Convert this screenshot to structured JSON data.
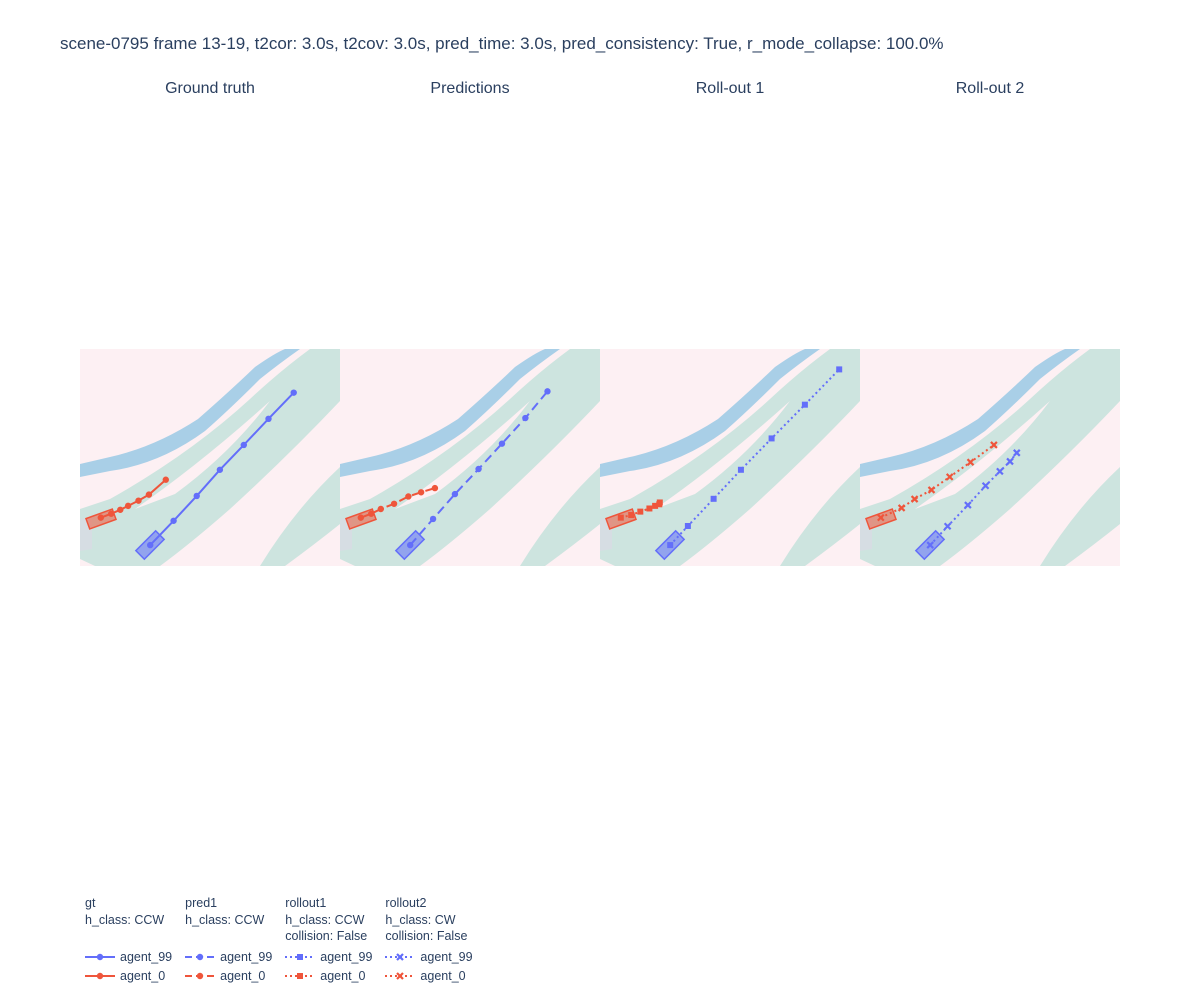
{
  "title": "scene-0795 frame 13-19, t2cor: 3.0s, t2cov: 3.0s, pred_time: 3.0s, pred_consistency: True, r_mode_collapse: 100.0%",
  "colors": {
    "agent_99": "#636efa",
    "agent_0": "#ef553b",
    "map_background": "#fdf0f3",
    "map_drivable": "#cde4df",
    "map_walkway": "#a9cfe7",
    "map_gray": "#d6dde3"
  },
  "chart_data": [
    {
      "type": "scatter",
      "panel": "gt",
      "subplot_title": "Ground truth",
      "xlim": [
        0,
        100
      ],
      "ylim": [
        0,
        83
      ],
      "grid": false,
      "series": [
        {
          "name": "agent_99",
          "legendgroup": "gt",
          "line": "solid",
          "marker": "circle",
          "x": [
            27,
            36,
            44.9,
            53.8,
            63,
            72.5,
            82.2
          ],
          "y": [
            8,
            17.3,
            26.8,
            36.8,
            46.3,
            56.3,
            66.3
          ]
        },
        {
          "name": "agent_0",
          "legendgroup": "gt",
          "line": "solid",
          "marker": "circle",
          "x": [
            8,
            12,
            15.5,
            18.5,
            22.5,
            26.5,
            33
          ],
          "y": [
            18.5,
            20,
            21.5,
            23,
            25,
            27.3,
            33
          ]
        }
      ]
    },
    {
      "type": "scatter",
      "panel": "pred1",
      "subplot_title": "Predictions",
      "xlim": [
        0,
        100
      ],
      "ylim": [
        0,
        83
      ],
      "grid": false,
      "series": [
        {
          "name": "agent_99",
          "legendgroup": "pred1",
          "line": "dash",
          "marker": "circle",
          "x": [
            27,
            35.8,
            44.2,
            53.3,
            62.3,
            71.3,
            79.8
          ],
          "y": [
            8,
            18,
            27.5,
            37.1,
            46.8,
            56.6,
            66.8
          ]
        },
        {
          "name": "agent_0",
          "legendgroup": "pred1",
          "line": "dash",
          "marker": "circle",
          "x": [
            8,
            12,
            15.7,
            20.8,
            26.3,
            31.2,
            36.5
          ],
          "y": [
            18.5,
            20,
            21.8,
            23.8,
            26.6,
            28.2,
            29.8
          ]
        }
      ]
    },
    {
      "type": "scatter",
      "panel": "rollout1",
      "subplot_title": "Roll-out 1",
      "xlim": [
        0,
        100
      ],
      "ylim": [
        0,
        83
      ],
      "grid": false,
      "series": [
        {
          "name": "agent_99",
          "legendgroup": "rollout1",
          "line": "dot",
          "marker": "square",
          "x": [
            27,
            33.8,
            43.7,
            54.2,
            66,
            78.8,
            92
          ],
          "y": [
            8,
            15.3,
            25.7,
            36.8,
            48.8,
            61.7,
            75.2
          ]
        },
        {
          "name": "agent_0",
          "legendgroup": "rollout1",
          "line": "dot",
          "marker": "square",
          "x": [
            8,
            12,
            15.5,
            19,
            21.2,
            22.8,
            23
          ],
          "y": [
            18.5,
            19.5,
            20.8,
            22,
            23,
            23.6,
            24.3
          ]
        }
      ]
    },
    {
      "type": "scatter",
      "panel": "rollout2",
      "subplot_title": "Roll-out 2",
      "xlim": [
        0,
        100
      ],
      "ylim": [
        0,
        83
      ],
      "grid": false,
      "series": [
        {
          "name": "agent_99",
          "legendgroup": "rollout2",
          "line": "dot",
          "marker": "x",
          "x": [
            27,
            33.7,
            41.5,
            48.3,
            53.8,
            57.7,
            60.3
          ],
          "y": [
            8,
            15.2,
            23.3,
            30.7,
            36.2,
            40,
            43.3
          ]
        },
        {
          "name": "agent_0",
          "legendgroup": "rollout2",
          "line": "dot",
          "marker": "x",
          "x": [
            8,
            16,
            21,
            27.5,
            34.5,
            42.5,
            51.5
          ],
          "y": [
            18.5,
            22.2,
            25.6,
            29.1,
            34.1,
            39.7,
            46.3
          ]
        }
      ]
    }
  ],
  "legend": {
    "groups": [
      {
        "key": "gt",
        "title": "gt",
        "lines": [
          "h_class: CCW"
        ],
        "line": "solid",
        "marker": "circle",
        "items": [
          "agent_99",
          "agent_0"
        ]
      },
      {
        "key": "pred1",
        "title": "pred1",
        "lines": [
          "h_class: CCW"
        ],
        "line": "dash",
        "marker": "circle",
        "items": [
          "agent_99",
          "agent_0"
        ]
      },
      {
        "key": "rollout1",
        "title": "rollout1",
        "lines": [
          "h_class: CCW",
          "collision: False"
        ],
        "line": "dot",
        "marker": "square",
        "items": [
          "agent_99",
          "agent_0"
        ]
      },
      {
        "key": "rollout2",
        "title": "rollout2",
        "lines": [
          "h_class: CW",
          "collision: False"
        ],
        "line": "dot",
        "marker": "x",
        "items": [
          "agent_99",
          "agent_0"
        ]
      }
    ]
  }
}
